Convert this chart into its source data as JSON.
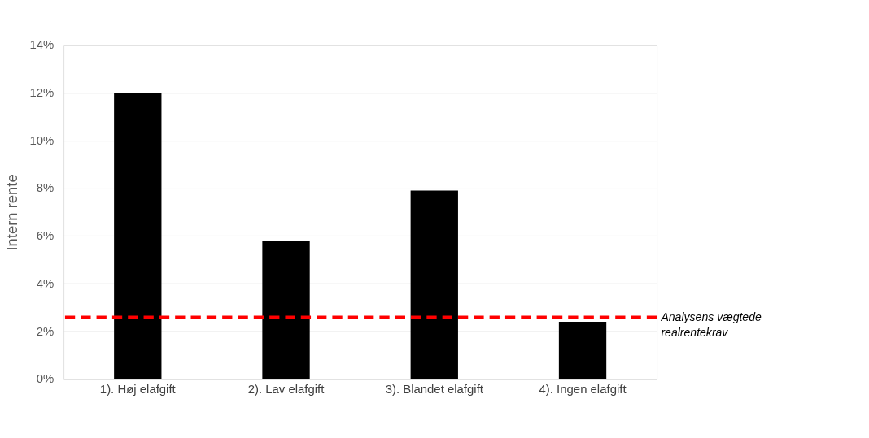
{
  "chart_data": {
    "type": "bar",
    "ylabel": "Intern rente",
    "categories": [
      "1). Høj elafgift",
      "2). Lav elafgift",
      "3). Blandet elafgift",
      "4). Ingen elafgift"
    ],
    "values": [
      12.0,
      5.8,
      7.9,
      2.4
    ],
    "color": "#000000",
    "ylim": [
      0,
      14
    ],
    "yticks": [
      {
        "value": 0,
        "label": "0%"
      },
      {
        "value": 2,
        "label": "2%"
      },
      {
        "value": 4,
        "label": "4%"
      },
      {
        "value": 6,
        "label": "6%"
      },
      {
        "value": 8,
        "label": "8%"
      },
      {
        "value": 10,
        "label": "10%"
      },
      {
        "value": 12,
        "label": "12%"
      },
      {
        "value": 14,
        "label": "14%"
      }
    ],
    "grid": "y",
    "ref_lines": [
      {
        "axis": "y",
        "value": 2.6,
        "label": "Analysens vægtede\nrealrentekrav",
        "color": "#ff0000",
        "line_style": "dashed"
      }
    ]
  }
}
